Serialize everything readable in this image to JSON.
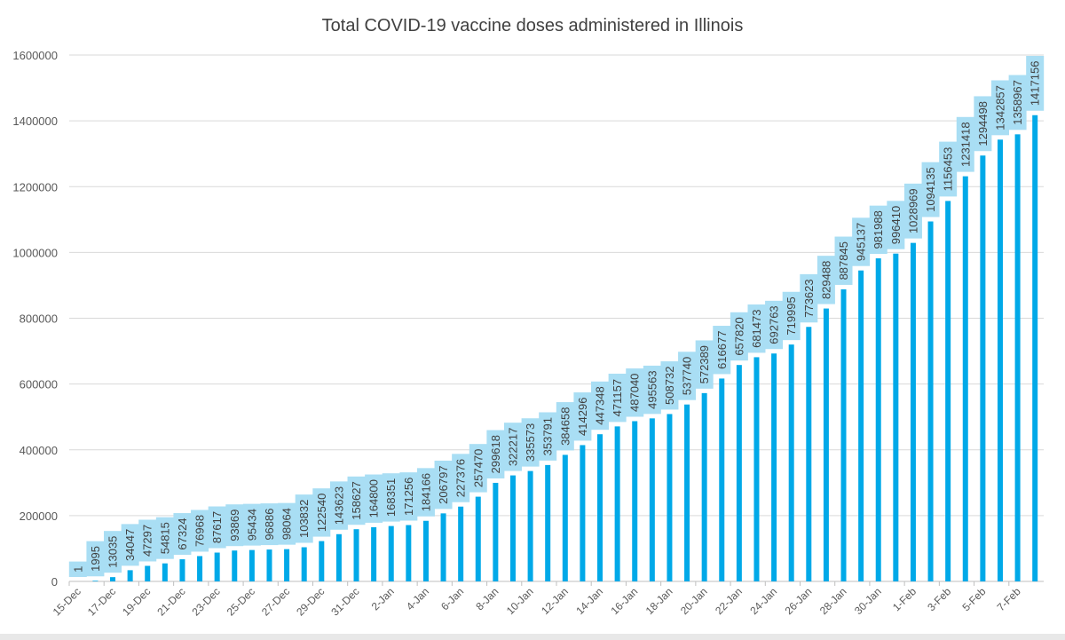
{
  "chart_data": {
    "type": "bar",
    "title": "Total COVID-19 vaccine doses administered in Illinois",
    "xlabel": "",
    "ylabel": "",
    "ylim": [
      0,
      1600000
    ],
    "yticks": [
      0,
      200000,
      400000,
      600000,
      800000,
      1000000,
      1200000,
      1400000,
      1600000
    ],
    "grid": true,
    "bar_color": "#00a9e8",
    "label_box_color": "#a9def4",
    "categories": [
      "15-Dec",
      "16-Dec",
      "17-Dec",
      "18-Dec",
      "19-Dec",
      "20-Dec",
      "21-Dec",
      "22-Dec",
      "23-Dec",
      "24-Dec",
      "25-Dec",
      "26-Dec",
      "27-Dec",
      "28-Dec",
      "29-Dec",
      "30-Dec",
      "31-Dec",
      "1-Jan",
      "2-Jan",
      "3-Jan",
      "4-Jan",
      "5-Jan",
      "6-Jan",
      "7-Jan",
      "8-Jan",
      "9-Jan",
      "10-Jan",
      "11-Jan",
      "12-Jan",
      "13-Jan",
      "14-Jan",
      "15-Jan",
      "16-Jan",
      "17-Jan",
      "18-Jan",
      "19-Jan",
      "20-Jan",
      "21-Jan",
      "22-Jan",
      "23-Jan",
      "24-Jan",
      "25-Jan",
      "26-Jan",
      "27-Jan",
      "28-Jan",
      "29-Jan",
      "30-Jan",
      "31-Jan",
      "1-Feb",
      "2-Feb",
      "3-Feb",
      "4-Feb",
      "5-Feb",
      "6-Feb",
      "7-Feb",
      "8-Feb"
    ],
    "shown_tick_labels": [
      "15-Dec",
      "17-Dec",
      "19-Dec",
      "21-Dec",
      "23-Dec",
      "25-Dec",
      "27-Dec",
      "29-Dec",
      "31-Dec",
      "2-Jan",
      "4-Jan",
      "6-Jan",
      "8-Jan",
      "10-Jan",
      "12-Jan",
      "14-Jan",
      "16-Jan",
      "18-Jan",
      "20-Jan",
      "22-Jan",
      "24-Jan",
      "26-Jan",
      "28-Jan",
      "30-Jan",
      "1-Feb",
      "3-Feb",
      "5-Feb",
      "7-Feb"
    ],
    "values": [
      1,
      1995,
      13035,
      34047,
      47297,
      54815,
      67324,
      76968,
      87617,
      93869,
      95434,
      96886,
      98064,
      103832,
      122540,
      143623,
      158627,
      164800,
      168351,
      171256,
      184166,
      206797,
      227376,
      257470,
      299618,
      322217,
      335573,
      353791,
      384658,
      414296,
      447348,
      471157,
      487040,
      495563,
      508732,
      537740,
      572389,
      616677,
      657820,
      681473,
      692763,
      719995,
      773623,
      829488,
      887845,
      945137,
      981988,
      996410,
      1028969,
      1094135,
      1156453,
      1231418,
      1294498,
      1342857,
      1358967,
      1417156
    ]
  }
}
